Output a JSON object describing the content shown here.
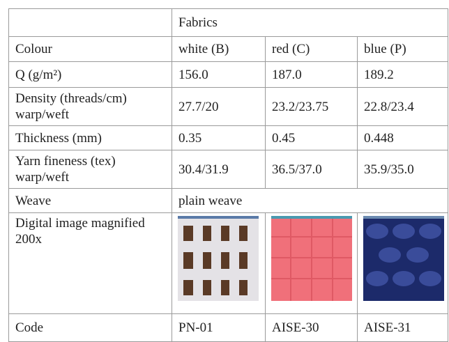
{
  "table": {
    "header": "Fabrics",
    "rows": [
      {
        "label": "Colour",
        "cells": [
          "white (B)",
          "red (C)",
          "blue (P)"
        ]
      },
      {
        "label": "Q (g/m²)",
        "cells": [
          "156.0",
          "187.0",
          "189.2"
        ]
      },
      {
        "label": "Density (threads/cm) warp/weft",
        "cells": [
          "27.7/20",
          "23.2/23.75",
          "22.8/23.4"
        ]
      },
      {
        "label": "Thickness (mm)",
        "cells": [
          "0.35",
          "0.45",
          "0.448"
        ]
      },
      {
        "label": "Yarn fineness (tex) warp/weft",
        "cells": [
          "30.4/31.9",
          "36.5/37.0",
          "35.9/35.0"
        ]
      },
      {
        "label": "Weave",
        "cells": [
          "plain weave"
        ]
      },
      {
        "label": "Digital image magnified 200x",
        "cells": []
      },
      {
        "label": "Code",
        "cells": [
          "PN-01",
          "AISE-30",
          "AISE-31"
        ]
      }
    ]
  }
}
